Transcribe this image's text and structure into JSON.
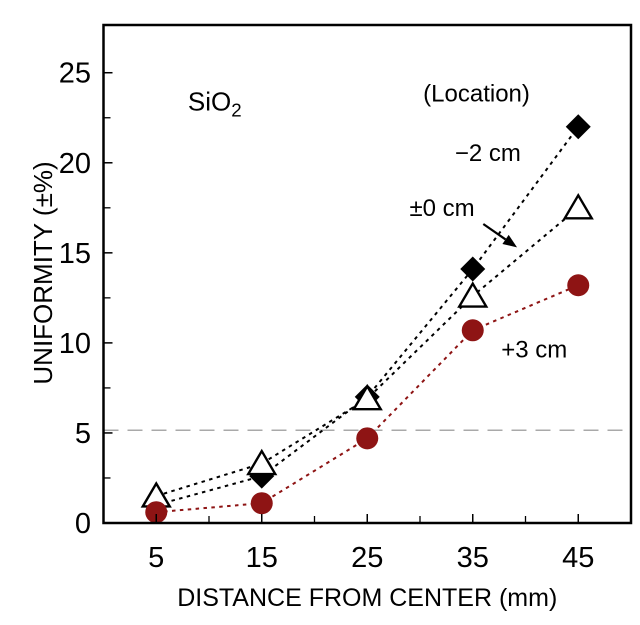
{
  "page": {
    "background": "#ffffff"
  },
  "chart_data": {
    "type": "scatter",
    "title": "",
    "xlabel": "DISTANCE FROM CENTER (mm)",
    "ylabel": "UNIFORMITY (±%)",
    "xlim": [
      0,
      50
    ],
    "ylim": [
      0,
      27.65
    ],
    "grid": false,
    "legend_position": "inline-annotations",
    "frame_color": "#000000",
    "x_major_ticks": [
      5,
      15,
      25,
      35,
      45
    ],
    "x_minor_ticks": [
      10,
      20,
      30,
      40
    ],
    "y_major_ticks": [
      0,
      5,
      10,
      15,
      20,
      25
    ],
    "y_minor_ticks": [
      2.5,
      7.5,
      12.5,
      17.5,
      22.5
    ],
    "x": [
      5,
      15,
      25,
      35,
      45
    ],
    "series": [
      {
        "id": "minus-2cm",
        "name": "−2 cm",
        "marker": "diamond-filled",
        "color": "#000000",
        "marker_fill": "#000000",
        "line_style": "dotted",
        "values": [
          1.0,
          2.6,
          7.0,
          14.1,
          22.0
        ],
        "label_pos": {
          "x": 33.3,
          "y": 20.1
        }
      },
      {
        "id": "pm-0cm",
        "name": "±0 cm",
        "marker": "triangle-open",
        "color": "#000000",
        "marker_fill": "#ffffff",
        "line_style": "dotted",
        "values": [
          1.5,
          3.3,
          6.9,
          12.6,
          17.5
        ],
        "label_pos": {
          "x": 29.0,
          "y": 17.05
        }
      },
      {
        "id": "plus-3cm",
        "name": "+3 cm",
        "marker": "circle-filled",
        "color": "#8e1414",
        "marker_fill": "#8e1414",
        "line_style": "dotted",
        "values": [
          0.6,
          1.1,
          4.7,
          10.7,
          13.2
        ],
        "label_pos": {
          "x": 37.7,
          "y": 9.2
        }
      }
    ],
    "reference_line": {
      "y": 5.15,
      "color": "#a9a9a9",
      "style": "dashed"
    },
    "annotations": [
      {
        "id": "material-label",
        "parts": [
          {
            "text": "SiO"
          },
          {
            "text": "2",
            "sub": true
          }
        ],
        "x": 8.0,
        "y": 22.9,
        "font_size": 26
      },
      {
        "id": "location-header",
        "text": "(Location)",
        "x": 30.3,
        "y": 23.4,
        "font_size": 24
      }
    ],
    "arrow": {
      "x1": 36.0,
      "y1": 16.6,
      "x2": 39.2,
      "y2": 15.3
    }
  }
}
